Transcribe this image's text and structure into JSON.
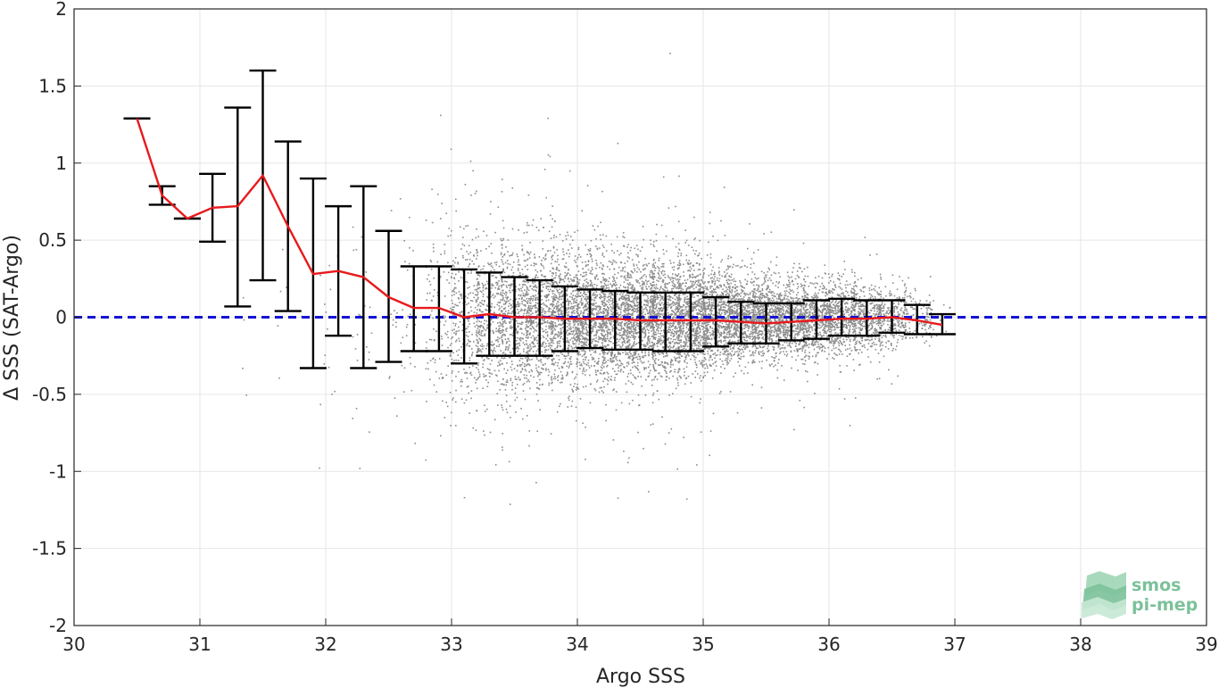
{
  "chart_data": {
    "type": "scatter",
    "xlabel": "Argo SSS",
    "ylabel": "Δ SSS (SAT-Argo)",
    "xlim": [
      30,
      39
    ],
    "ylim": [
      -2,
      2
    ],
    "xticks": [
      30,
      31,
      32,
      33,
      34,
      35,
      36,
      37,
      38,
      39
    ],
    "yticks": [
      -2,
      -1.5,
      -1,
      -0.5,
      0,
      0.5,
      1,
      1.5,
      2
    ],
    "grid": true,
    "colors": {
      "scatter": "#8c8c8c",
      "mean_line": "#e8191c",
      "error_bars": "#000000",
      "zero_line": "#1414d2",
      "logo": "#7cc19a"
    },
    "reference_line": {
      "y": 0,
      "style": "dashed"
    },
    "binned_stats": {
      "x": [
        30.5,
        30.7,
        30.9,
        31.1,
        31.3,
        31.5,
        31.7,
        31.9,
        32.1,
        32.3,
        32.5,
        32.7,
        32.9,
        33.1,
        33.3,
        33.5,
        33.7,
        33.9,
        34.1,
        34.3,
        34.5,
        34.7,
        34.9,
        35.1,
        35.3,
        35.5,
        35.7,
        35.9,
        36.1,
        36.3,
        36.5,
        36.7,
        36.9
      ],
      "mean": [
        1.29,
        0.79,
        0.64,
        0.71,
        0.72,
        0.92,
        0.59,
        0.28,
        0.3,
        0.26,
        0.13,
        0.06,
        0.06,
        0.0,
        0.02,
        0.0,
        0.0,
        -0.01,
        -0.01,
        -0.01,
        -0.02,
        -0.02,
        -0.02,
        -0.02,
        -0.03,
        -0.04,
        -0.03,
        -0.02,
        -0.01,
        -0.01,
        0.0,
        -0.02,
        -0.05
      ],
      "upper": [
        1.29,
        0.85,
        0.64,
        0.93,
        1.36,
        1.6,
        1.14,
        0.9,
        0.72,
        0.85,
        0.56,
        0.33,
        0.33,
        0.31,
        0.29,
        0.26,
        0.24,
        0.2,
        0.18,
        0.17,
        0.16,
        0.16,
        0.16,
        0.13,
        0.1,
        0.09,
        0.09,
        0.11,
        0.12,
        0.11,
        0.11,
        0.08,
        0.02
      ],
      "lower": [
        1.29,
        0.73,
        0.64,
        0.49,
        0.07,
        0.24,
        0.04,
        -0.33,
        -0.12,
        -0.33,
        -0.29,
        -0.22,
        -0.22,
        -0.3,
        -0.25,
        -0.25,
        -0.25,
        -0.22,
        -0.2,
        -0.21,
        -0.21,
        -0.22,
        -0.22,
        -0.19,
        -0.17,
        -0.17,
        -0.15,
        -0.14,
        -0.12,
        -0.12,
        -0.1,
        -0.11,
        -0.11
      ]
    },
    "scatter_cloud": [
      {
        "x": 31.3,
        "spread": 0.35,
        "count": 4
      },
      {
        "x": 31.7,
        "spread": 0.4,
        "count": 6
      },
      {
        "x": 32.0,
        "spread": 0.45,
        "count": 14
      },
      {
        "x": 32.3,
        "spread": 0.45,
        "count": 22
      },
      {
        "x": 32.6,
        "spread": 0.4,
        "count": 40
      },
      {
        "x": 32.9,
        "spread": 0.35,
        "count": 120
      },
      {
        "x": 33.1,
        "spread": 0.32,
        "count": 260
      },
      {
        "x": 33.3,
        "spread": 0.3,
        "count": 380
      },
      {
        "x": 33.5,
        "spread": 0.28,
        "count": 480
      },
      {
        "x": 33.7,
        "spread": 0.26,
        "count": 560
      },
      {
        "x": 33.9,
        "spread": 0.24,
        "count": 620
      },
      {
        "x": 34.1,
        "spread": 0.22,
        "count": 660
      },
      {
        "x": 34.3,
        "spread": 0.21,
        "count": 700
      },
      {
        "x": 34.5,
        "spread": 0.21,
        "count": 720
      },
      {
        "x": 34.7,
        "spread": 0.21,
        "count": 740
      },
      {
        "x": 34.9,
        "spread": 0.2,
        "count": 760
      },
      {
        "x": 35.1,
        "spread": 0.17,
        "count": 700
      },
      {
        "x": 35.3,
        "spread": 0.15,
        "count": 640
      },
      {
        "x": 35.5,
        "spread": 0.14,
        "count": 600
      },
      {
        "x": 35.7,
        "spread": 0.13,
        "count": 560
      },
      {
        "x": 35.9,
        "spread": 0.13,
        "count": 520
      },
      {
        "x": 36.1,
        "spread": 0.13,
        "count": 460
      },
      {
        "x": 36.3,
        "spread": 0.12,
        "count": 380
      },
      {
        "x": 36.5,
        "spread": 0.11,
        "count": 260
      },
      {
        "x": 36.7,
        "spread": 0.09,
        "count": 110
      },
      {
        "x": 36.85,
        "spread": 0.07,
        "count": 30
      }
    ]
  },
  "logo": {
    "line1": "smos",
    "line2": "pi-mep"
  }
}
